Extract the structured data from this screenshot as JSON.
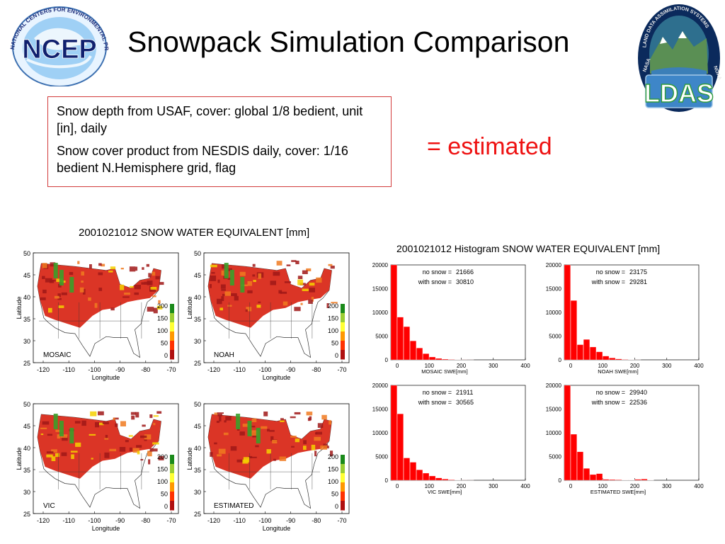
{
  "page": {
    "title": "Snowpack Simulation Comparison",
    "logos": {
      "ncep_text": "NCEP",
      "ncep_ring": "NATIONAL CENTERS FOR ENVIRONMENTAL PREDICTION",
      "ldas_text": "LDAS",
      "ldas_ring": "LAND DATA ASSIMILATION SYSTEMS",
      "ldas_side_left": "NASA",
      "ldas_side_right": "NOAA"
    },
    "info_lines": [
      "Snow depth from USAF, cover: global 1/8 bedient, unit [in], daily",
      "Snow cover product from NESDIS daily, cover: 1/16 bedient N.Hemisphere grid, flag"
    ],
    "legend_note": "= estimated",
    "colors": {
      "accent_red": "#ee1111",
      "box_border": "#d23c3c",
      "bar_red": "#ff0000"
    }
  },
  "chart_data": [
    {
      "type": "heatmap",
      "title": "2001021012 SNOW WATER EQUIVALENT [mm]",
      "panels": [
        "MOSAIC",
        "NOAH",
        "VIC",
        "ESTIMATED"
      ],
      "xlabel": "Longitude",
      "ylabel": "Latitude",
      "x_ticks": [
        "-120",
        "-110",
        "-100",
        "-90",
        "-80",
        "-70"
      ],
      "y_ticks": [
        "50",
        "45",
        "40",
        "35",
        "30",
        "25"
      ],
      "colorbar_ticks": [
        "200",
        "150",
        "100",
        "50",
        "0"
      ],
      "colorbar_colors": [
        "#1a8a1a",
        "#9acd32",
        "#ffff33",
        "#ff9900",
        "#ff3300",
        "#b01010"
      ],
      "map_colors": {
        "snow_red": "#d92a1a",
        "snow_dark": "#a01818",
        "snow_orange": "#f07a20",
        "snow_yellow": "#f5d000",
        "snow_green": "#3aa02a"
      }
    },
    {
      "type": "bar",
      "title": "2001021012 Histogram SNOW WATER EQUIVALENT [mm]",
      "x_ticks": [
        "0",
        "100",
        "200",
        "300",
        "400"
      ],
      "y_ticks": [
        "20000",
        "15000",
        "10000",
        "5000",
        "0"
      ],
      "xlim": [
        -20,
        400
      ],
      "ylim": [
        0,
        20000
      ],
      "bin_width": 20,
      "bin_starts": [
        -20,
        0,
        20,
        40,
        60,
        80,
        100,
        120,
        140,
        160,
        180,
        200,
        220,
        240
      ],
      "series": [
        {
          "name": "MOSAIC",
          "xlabel": "MOSAIC SWE[mm]",
          "no_snow_label": "no snow =",
          "no_snow": "21666",
          "with_snow_label": "with snow =",
          "with_snow": "30810",
          "values": [
            20000,
            9000,
            7000,
            4000,
            2500,
            1300,
            600,
            300,
            150,
            80,
            40,
            20,
            10,
            0
          ]
        },
        {
          "name": "NOAH",
          "xlabel": "NOAH SWE[mm]",
          "no_snow_label": "no snow =",
          "no_snow": "23175",
          "with_snow_label": "with snow =",
          "with_snow": "29281",
          "values": [
            20000,
            12500,
            3200,
            4300,
            2700,
            1700,
            800,
            400,
            200,
            80,
            30,
            10,
            0,
            0
          ]
        },
        {
          "name": "VIC",
          "xlabel": "VIC SWE[mm]",
          "no_snow_label": "no snow =",
          "no_snow": "21911",
          "with_snow_label": "with snow =",
          "with_snow": "30565",
          "values": [
            20000,
            14000,
            4700,
            3800,
            2200,
            1500,
            900,
            500,
            250,
            100,
            40,
            20,
            10,
            0
          ]
        },
        {
          "name": "ESTIMATED",
          "xlabel": "ESTIMATED SWE[mm]",
          "no_snow_label": "no snow =",
          "no_snow": "29940",
          "with_snow_label": "with snow =",
          "with_snow": "22536",
          "values": [
            20000,
            9700,
            6000,
            2500,
            1200,
            1400,
            200,
            150,
            100,
            50,
            30,
            200,
            250,
            50
          ]
        }
      ]
    }
  ]
}
